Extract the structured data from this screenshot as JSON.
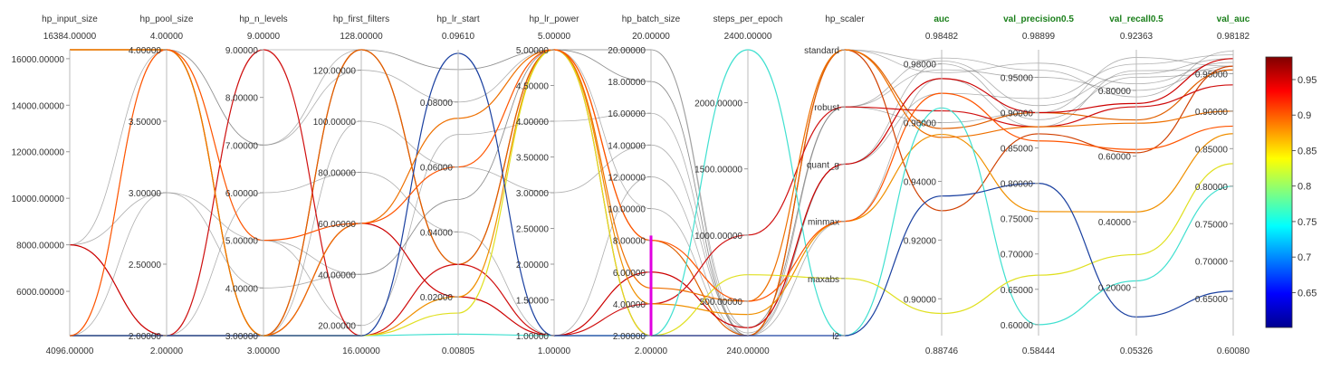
{
  "chart_data": {
    "type": "parallel_coordinates",
    "colorbar": {
      "ticks": [
        "0.95",
        "0.9",
        "0.85",
        "0.8",
        "0.75",
        "0.7",
        "0.65"
      ],
      "values": [
        0.95,
        0.9,
        0.85,
        0.8,
        0.75,
        0.7,
        0.65
      ],
      "min": 0.6008,
      "max": 0.98182
    },
    "axes": [
      {
        "name": "hp_input_size",
        "metric": false,
        "max_label": "16384.00000",
        "min_label": "4096.00000",
        "min": 4096,
        "max": 16384,
        "ticks": [
          {
            "v": 6000,
            "label": "6000.00000"
          },
          {
            "v": 8000,
            "label": "8000.00000"
          },
          {
            "v": 10000,
            "label": "10000.00000"
          },
          {
            "v": 12000,
            "label": "12000.00000"
          },
          {
            "v": 14000,
            "label": "14000.00000"
          },
          {
            "v": 16000,
            "label": "16000.00000"
          }
        ]
      },
      {
        "name": "hp_pool_size",
        "metric": false,
        "max_label": "4.00000",
        "min_label": "2.00000",
        "min": 2,
        "max": 4,
        "ticks": [
          {
            "v": 2,
            "label": "2.00000"
          },
          {
            "v": 2.5,
            "label": "2.50000"
          },
          {
            "v": 3,
            "label": "3.00000"
          },
          {
            "v": 3.5,
            "label": "3.50000"
          },
          {
            "v": 4,
            "label": "4.00000"
          }
        ]
      },
      {
        "name": "hp_n_levels",
        "metric": false,
        "max_label": "9.00000",
        "min_label": "3.00000",
        "min": 3,
        "max": 9,
        "ticks": [
          {
            "v": 3,
            "label": "3.00000"
          },
          {
            "v": 4,
            "label": "4.00000"
          },
          {
            "v": 5,
            "label": "5.00000"
          },
          {
            "v": 6,
            "label": "6.00000"
          },
          {
            "v": 7,
            "label": "7.00000"
          },
          {
            "v": 8,
            "label": "8.00000"
          },
          {
            "v": 9,
            "label": "9.00000"
          }
        ]
      },
      {
        "name": "hp_first_filters",
        "metric": false,
        "max_label": "128.00000",
        "min_label": "16.00000",
        "min": 16,
        "max": 128,
        "ticks": [
          {
            "v": 20,
            "label": "20.00000"
          },
          {
            "v": 40,
            "label": "40.00000"
          },
          {
            "v": 60,
            "label": "60.00000"
          },
          {
            "v": 80,
            "label": "80.00000"
          },
          {
            "v": 100,
            "label": "100.00000"
          },
          {
            "v": 120,
            "label": "120.00000"
          }
        ]
      },
      {
        "name": "hp_lr_start",
        "metric": false,
        "max_label": "0.09610",
        "min_label": "0.00805",
        "min": 0.00805,
        "max": 0.0961,
        "ticks": [
          {
            "v": 0.02,
            "label": "0.02000"
          },
          {
            "v": 0.04,
            "label": "0.04000"
          },
          {
            "v": 0.06,
            "label": "0.06000"
          },
          {
            "v": 0.08,
            "label": "0.08000"
          }
        ]
      },
      {
        "name": "hp_lr_power",
        "metric": false,
        "max_label": "5.00000",
        "min_label": "1.00000",
        "min": 1,
        "max": 5,
        "ticks": [
          {
            "v": 1,
            "label": "1.00000"
          },
          {
            "v": 1.5,
            "label": "1.50000"
          },
          {
            "v": 2,
            "label": "2.00000"
          },
          {
            "v": 2.5,
            "label": "2.50000"
          },
          {
            "v": 3,
            "label": "3.00000"
          },
          {
            "v": 3.5,
            "label": "3.50000"
          },
          {
            "v": 4,
            "label": "4.00000"
          },
          {
            "v": 4.5,
            "label": "4.50000"
          },
          {
            "v": 5,
            "label": "5.00000"
          }
        ]
      },
      {
        "name": "hp_batch_size",
        "metric": false,
        "max_label": "20.00000",
        "min_label": "2.00000",
        "min": 2,
        "max": 20,
        "ticks": [
          {
            "v": 2,
            "label": "2.00000"
          },
          {
            "v": 4,
            "label": "4.00000"
          },
          {
            "v": 6,
            "label": "6.00000"
          },
          {
            "v": 8,
            "label": "8.00000"
          },
          {
            "v": 10,
            "label": "10.00000"
          },
          {
            "v": 12,
            "label": "12.00000"
          },
          {
            "v": 14,
            "label": "14.00000"
          },
          {
            "v": 16,
            "label": "16.00000"
          },
          {
            "v": 18,
            "label": "18.00000"
          },
          {
            "v": 20,
            "label": "20.00000"
          }
        ]
      },
      {
        "name": "steps_per_epoch",
        "metric": false,
        "max_label": "2400.00000",
        "min_label": "240.00000",
        "min": 240,
        "max": 2400,
        "ticks": [
          {
            "v": 500,
            "label": "500.00000"
          },
          {
            "v": 1000,
            "label": "1000.00000"
          },
          {
            "v": 1500,
            "label": "1500.00000"
          },
          {
            "v": 2000,
            "label": "2000.00000"
          }
        ]
      },
      {
        "name": "hp_scaler",
        "metric": false,
        "categorical": true,
        "max_label": "",
        "min_label": "",
        "categories": [
          "l2",
          "maxabs",
          "minmax",
          "quant_g",
          "robust",
          "standard"
        ]
      },
      {
        "name": "auc",
        "metric": true,
        "max_label": "0.98482",
        "min_label": "0.88746",
        "min": 0.88746,
        "max": 0.98482,
        "ticks": [
          {
            "v": 0.9,
            "label": "0.90000"
          },
          {
            "v": 0.92,
            "label": "0.92000"
          },
          {
            "v": 0.94,
            "label": "0.94000"
          },
          {
            "v": 0.96,
            "label": "0.96000"
          },
          {
            "v": 0.98,
            "label": "0.98000"
          }
        ]
      },
      {
        "name": "val_precision0.5",
        "metric": true,
        "max_label": "0.98899",
        "min_label": "0.58444",
        "min": 0.58444,
        "max": 0.98899,
        "ticks": [
          {
            "v": 0.6,
            "label": "0.60000"
          },
          {
            "v": 0.65,
            "label": "0.65000"
          },
          {
            "v": 0.7,
            "label": "0.70000"
          },
          {
            "v": 0.75,
            "label": "0.75000"
          },
          {
            "v": 0.8,
            "label": "0.80000"
          },
          {
            "v": 0.85,
            "label": "0.85000"
          },
          {
            "v": 0.9,
            "label": "0.90000"
          },
          {
            "v": 0.95,
            "label": "0.95000"
          }
        ]
      },
      {
        "name": "val_recall0.5",
        "metric": true,
        "max_label": "0.92363",
        "min_label": "0.05326",
        "min": 0.05326,
        "max": 0.92363,
        "ticks": [
          {
            "v": 0.2,
            "label": "0.20000"
          },
          {
            "v": 0.4,
            "label": "0.40000"
          },
          {
            "v": 0.6,
            "label": "0.60000"
          },
          {
            "v": 0.8,
            "label": "0.80000"
          }
        ]
      },
      {
        "name": "val_auc",
        "metric": true,
        "max_label": "0.98182",
        "min_label": "0.60080",
        "min": 0.6008,
        "max": 0.98182,
        "ticks": [
          {
            "v": 0.65,
            "label": "0.65000"
          },
          {
            "v": 0.7,
            "label": "0.70000"
          },
          {
            "v": 0.75,
            "label": "0.75000"
          },
          {
            "v": 0.8,
            "label": "0.80000"
          },
          {
            "v": 0.85,
            "label": "0.85000"
          },
          {
            "v": 0.9,
            "label": "0.90000"
          },
          {
            "v": 0.95,
            "label": "0.95000"
          }
        ]
      }
    ],
    "brush": {
      "axis": "hp_batch_size",
      "from": 2,
      "to": 8.3,
      "color": "#e000e0"
    },
    "runs": [
      {
        "v": [
          16384,
          4,
          3,
          128,
          0.03,
          5,
          2,
          240,
          "standard",
          0.93,
          0.87,
          0.61,
          0.96
        ],
        "color": "#d04000"
      },
      {
        "v": [
          16384,
          4,
          3,
          128,
          0.03,
          5,
          8,
          240,
          "standard",
          0.958,
          0.9,
          0.71,
          0.955
        ],
        "color": "#e06000"
      },
      {
        "v": [
          4096,
          2,
          9,
          16,
          0.03,
          1,
          4,
          1000,
          "robust",
          0.964,
          0.88,
          0.75,
          0.935
        ],
        "color": "#d01010"
      },
      {
        "v": [
          8000,
          2,
          3,
          60,
          0.02,
          1,
          6,
          300,
          "quant_g",
          0.975,
          0.9,
          0.76,
          0.97
        ],
        "color": "#cc0000"
      },
      {
        "v": [
          4096,
          2,
          3,
          16,
          0.02,
          5,
          4,
          400,
          "minmax",
          0.956,
          0.76,
          0.43,
          0.87
        ],
        "color": "#f09000"
      },
      {
        "v": [
          4096,
          2,
          3,
          16,
          0.0085,
          1,
          2,
          2400,
          "l2",
          0.965,
          0.6,
          0.22,
          0.8
        ],
        "color": "#40e0d0"
      },
      {
        "v": [
          16384,
          4,
          3,
          16,
          0.015,
          5,
          2,
          700,
          "maxabs",
          0.895,
          0.67,
          0.3,
          0.83
        ],
        "color": "#e0e020"
      },
      {
        "v": [
          4096,
          2,
          3,
          16,
          0.095,
          1,
          2,
          240,
          "l2",
          0.935,
          0.8,
          0.11,
          0.66
        ],
        "color": "#1a40a0"
      },
      {
        "v": [
          16384,
          4,
          3,
          60,
          0.075,
          5,
          5,
          500,
          "standard",
          0.955,
          0.88,
          0.7,
          0.9
        ],
        "color": "#ee7000"
      },
      {
        "v": [
          4096,
          4,
          5,
          60,
          0.06,
          5,
          8,
          500,
          "minmax",
          0.97,
          0.86,
          0.62,
          0.88
        ],
        "color": "#ff5500"
      }
    ],
    "background_runs": [
      [
        8000,
        4,
        7,
        128,
        0.09,
        5,
        20,
        300,
        "robust",
        0.978,
        0.95,
        0.8,
        0.96
      ],
      [
        16384,
        4,
        5,
        40,
        0.05,
        5,
        18,
        240,
        "standard",
        0.981,
        0.91,
        0.85,
        0.97
      ],
      [
        4096,
        3,
        5,
        20,
        0.07,
        4,
        16,
        260,
        "quant_g",
        0.97,
        0.92,
        0.88,
        0.975
      ],
      [
        8000,
        2,
        6,
        80,
        0.04,
        1,
        12,
        240,
        "robust",
        0.982,
        0.96,
        0.78,
        0.98
      ],
      [
        4096,
        2,
        9,
        128,
        0.09,
        5,
        20,
        240,
        "minmax",
        0.975,
        0.88,
        0.86,
        0.955
      ],
      [
        16384,
        4,
        3,
        100,
        0.06,
        3,
        14,
        300,
        "robust",
        0.96,
        0.9,
        0.9,
        0.96
      ],
      [
        8000,
        3,
        4,
        40,
        0.05,
        5,
        10,
        240,
        "standard",
        0.977,
        0.97,
        0.82,
        0.965
      ],
      [
        4096,
        4,
        7,
        120,
        0.08,
        5,
        18,
        240,
        "quant_g",
        0.98,
        0.89,
        0.84,
        0.95
      ]
    ]
  }
}
